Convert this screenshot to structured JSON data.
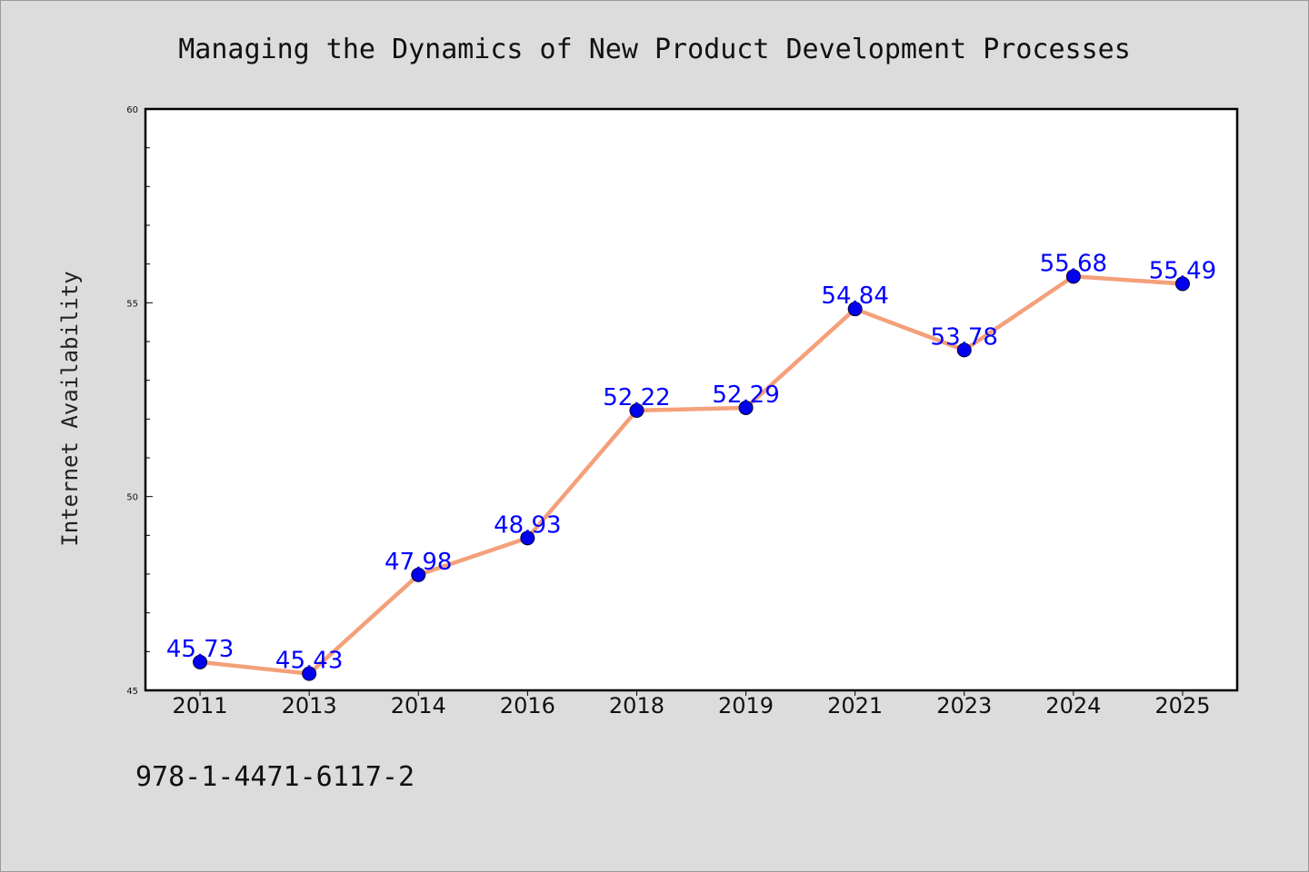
{
  "chart_data": {
    "type": "line",
    "title": "Managing the Dynamics of New Product Development Processes",
    "xlabel": "",
    "ylabel": "Internet Availability",
    "categories": [
      "2011",
      "2013",
      "2014",
      "2016",
      "2018",
      "2019",
      "2021",
      "2023",
      "2024",
      "2025"
    ],
    "series": [
      {
        "values": [
          45.73,
          45.43,
          47.98,
          48.93,
          52.22,
          52.29,
          54.84,
          53.78,
          55.68,
          55.49
        ],
        "data_labels": [
          "45.73",
          "45.43",
          "47.98",
          "48.93",
          "52.22",
          "52.29",
          "54.84",
          "53.78",
          "55.68",
          "55.49"
        ]
      }
    ],
    "ylim": [
      45,
      60
    ],
    "yticks": [
      "45",
      "50",
      "55",
      "60"
    ],
    "grid": false,
    "legend": "none",
    "line_color": "#f4a07a",
    "marker_color": "#0000ee",
    "label_color": "#0000ff"
  },
  "footnote": "978-1-4471-6117-2"
}
